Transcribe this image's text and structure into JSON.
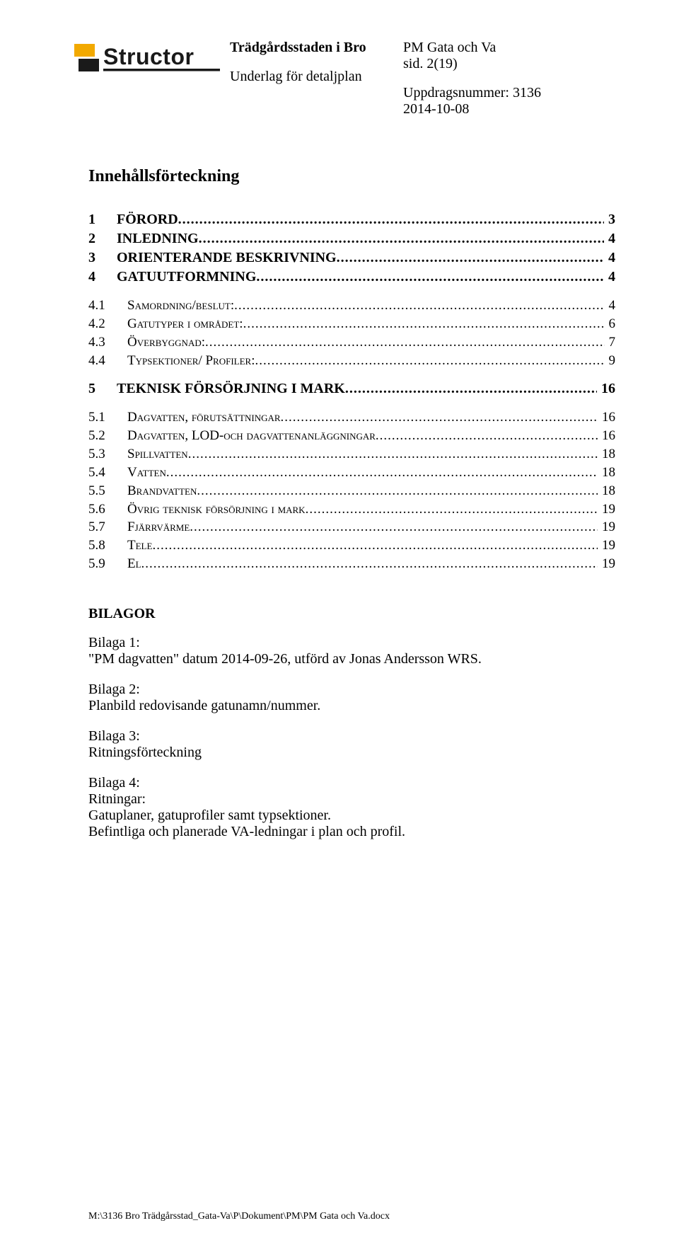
{
  "logo": {
    "text_main": "Structor",
    "fill_yellow": "#f2a900",
    "fill_black": "#1a1a1a"
  },
  "header": {
    "project_title": "Trädgårdsstaden i Bro",
    "subtitle": "Underlag för detaljplan",
    "doc_type": "PM Gata och Va",
    "page_info": "sid. 2(19)",
    "assignment": "Uppdragsnummer: 3136",
    "date": "2014-10-08"
  },
  "section_title": "Innehållsförteckning",
  "toc": [
    {
      "level": 1,
      "num": "1",
      "label": "FÖRORD",
      "page": "3"
    },
    {
      "level": 1,
      "num": "2",
      "label": "INLEDNING",
      "page": "4"
    },
    {
      "level": 1,
      "num": "3",
      "label": "ORIENTERANDE BESKRIVNING",
      "page": "4"
    },
    {
      "level": 1,
      "num": "4",
      "label": "GATUUTFORMNING",
      "page": "4"
    },
    {
      "level": 2,
      "num": "4.1",
      "label": "Samordning/beslut:",
      "page": "4"
    },
    {
      "level": 2,
      "num": "4.2",
      "label": "Gatutyper i området:",
      "page": "6"
    },
    {
      "level": 2,
      "num": "4.3",
      "label": "Överbyggnad:",
      "page": "7"
    },
    {
      "level": 2,
      "num": "4.4",
      "label": "Typsektioner/ Profiler:",
      "page": "9"
    },
    {
      "level": 1,
      "num": "5",
      "label": "TEKNISK FÖRSÖRJNING I MARK",
      "page": "16"
    },
    {
      "level": 2,
      "num": "5.1",
      "label": "Dagvatten, förutsättningar",
      "page": "16"
    },
    {
      "level": 2,
      "num": "5.2",
      "label": "Dagvatten, LOD-och dagvattenanläggningar",
      "page": "16"
    },
    {
      "level": 2,
      "num": "5.3",
      "label": "Spillvatten",
      "page": "18"
    },
    {
      "level": 2,
      "num": "5.4",
      "label": "Vatten",
      "page": "18"
    },
    {
      "level": 2,
      "num": "5.5",
      "label": "Brandvatten",
      "page": "18"
    },
    {
      "level": 2,
      "num": "5.6",
      "label": "Övrig teknisk försörjning i mark",
      "page": "19"
    },
    {
      "level": 2,
      "num": "5.7",
      "label": "Fjärrvärme",
      "page": "19"
    },
    {
      "level": 2,
      "num": "5.8",
      "label": "Tele",
      "page": "19"
    },
    {
      "level": 2,
      "num": "5.9",
      "label": "El",
      "page": "19"
    }
  ],
  "bilagor": {
    "title": "BILAGOR",
    "items": [
      {
        "label": "Bilaga 1:",
        "lines": [
          "\"PM dagvatten\" datum 2014-09-26, utförd av Jonas Andersson WRS."
        ]
      },
      {
        "label": "Bilaga 2:",
        "lines": [
          "Planbild redovisande gatunamn/nummer."
        ]
      },
      {
        "label": "Bilaga 3:",
        "lines": [
          "Ritningsförteckning"
        ]
      },
      {
        "label": "Bilaga 4:",
        "lines": [
          "Ritningar:",
          "Gatuplaner, gatuprofiler samt typsektioner.",
          "Befintliga och planerade VA-ledningar i plan och profil."
        ]
      }
    ]
  },
  "footer_path": "M:\\3136 Bro Trädgårsstad_Gata-Va\\P\\Dokument\\PM\\PM Gata och Va.docx"
}
